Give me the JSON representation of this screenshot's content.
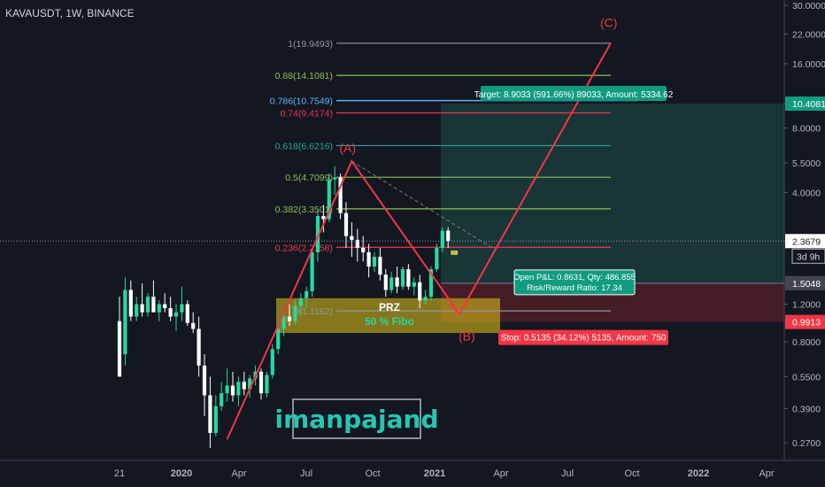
{
  "header": {
    "title": "KAVAUSDT, 1W, BINANCE"
  },
  "watermark": "imanpajand",
  "colors": {
    "bg": "#131722",
    "up": "#26d9a0",
    "down": "#ffffff",
    "fib": "#8bc34a",
    "pattern": "#f23645",
    "target_bg": "#1b3b3c",
    "stop_bg": "#4a1e26",
    "prz_fill": "#e6c619",
    "target_label": "#119c80",
    "stop_label": "#f23645"
  },
  "chart_data": {
    "type": "candlestick",
    "symbol": "KAVAUSDT",
    "interval": "1W",
    "exchange": "BINANCE",
    "y_scale": "log",
    "ylim": [
      0.24,
      32
    ],
    "x_axis": {
      "tick_labels": [
        "21",
        "2020",
        "Apr",
        "Jul",
        "Oct",
        "2021",
        "Apr",
        "Jul",
        "Oct",
        "2022",
        "Apr"
      ]
    },
    "y_axis": {
      "tick_labels": [
        "30.0000",
        "22.0000",
        "16.0000",
        "10.4081",
        "8.0000",
        "5.5000",
        "4.0000",
        "2.3679",
        "1.5048",
        "1.2000",
        "0.9913",
        "0.8000",
        "0.5500",
        "0.3900",
        "0.2700"
      ],
      "tick_values": [
        30,
        22,
        16,
        10.4081,
        8,
        5.5,
        4,
        2.3679,
        1.5048,
        1.2,
        0.9913,
        0.8,
        0.55,
        0.39,
        0.27
      ],
      "highlighted": [
        {
          "label": "10.4081",
          "color": "#119c80"
        },
        {
          "label": "2.3679",
          "color": "#ffffff"
        },
        {
          "label": "1.5048",
          "color": "#434651"
        },
        {
          "label": "0.9913",
          "color": "#f23645"
        }
      ],
      "countdown": "3d 9h"
    },
    "candles": [
      [
        1.0,
        1.3,
        0.55,
        0.55
      ],
      [
        0.7,
        1.6,
        0.62,
        1.4
      ],
      [
        1.4,
        1.55,
        1.0,
        1.05
      ],
      [
        1.05,
        1.3,
        1.0,
        1.2
      ],
      [
        1.2,
        1.5,
        1.05,
        1.1
      ],
      [
        1.1,
        1.35,
        1.05,
        1.3
      ],
      [
        1.3,
        1.55,
        1.1,
        1.1
      ],
      [
        1.1,
        1.25,
        1.0,
        1.2
      ],
      [
        1.2,
        1.35,
        1.1,
        1.15
      ],
      [
        1.15,
        1.3,
        1.0,
        1.05
      ],
      [
        1.05,
        1.2,
        0.9,
        1.1
      ],
      [
        1.1,
        1.45,
        1.0,
        1.2
      ],
      [
        1.2,
        1.25,
        0.95,
        0.98
      ],
      [
        0.98,
        1.1,
        0.88,
        0.92
      ],
      [
        0.92,
        1.05,
        0.55,
        0.62
      ],
      [
        0.62,
        0.7,
        0.36,
        0.45
      ],
      [
        0.45,
        0.55,
        0.255,
        0.3
      ],
      [
        0.3,
        0.45,
        0.29,
        0.4
      ],
      [
        0.4,
        0.52,
        0.38,
        0.46
      ],
      [
        0.46,
        0.6,
        0.42,
        0.5
      ],
      [
        0.5,
        0.58,
        0.42,
        0.45
      ],
      [
        0.45,
        0.55,
        0.4,
        0.52
      ],
      [
        0.52,
        0.58,
        0.45,
        0.48
      ],
      [
        0.48,
        0.56,
        0.44,
        0.54
      ],
      [
        0.54,
        0.62,
        0.5,
        0.58
      ],
      [
        0.58,
        0.6,
        0.43,
        0.46
      ],
      [
        0.46,
        0.58,
        0.44,
        0.56
      ],
      [
        0.56,
        0.78,
        0.54,
        0.74
      ],
      [
        0.74,
        0.98,
        0.7,
        0.92
      ],
      [
        0.92,
        1.1,
        0.85,
        1.05
      ],
      [
        1.05,
        1.2,
        0.95,
        1.0
      ],
      [
        1.0,
        1.25,
        0.96,
        1.18
      ],
      [
        1.18,
        1.35,
        1.08,
        1.28
      ],
      [
        1.28,
        1.45,
        1.15,
        1.38
      ],
      [
        1.38,
        2.2,
        1.3,
        2.1
      ],
      [
        2.1,
        3.3,
        1.9,
        3.1
      ],
      [
        3.1,
        3.5,
        2.6,
        3.0
      ],
      [
        3.0,
        4.9,
        2.9,
        4.6
      ],
      [
        4.6,
        5.3,
        3.9,
        4.7
      ],
      [
        4.7,
        4.9,
        3.0,
        3.2
      ],
      [
        3.2,
        3.6,
        2.2,
        2.5
      ],
      [
        2.5,
        2.9,
        2.0,
        2.4
      ],
      [
        2.4,
        2.7,
        1.9,
        2.2
      ],
      [
        2.2,
        2.5,
        1.9,
        2.1
      ],
      [
        2.1,
        2.3,
        1.6,
        1.8
      ],
      [
        1.8,
        2.1,
        1.7,
        2.0
      ],
      [
        2.0,
        2.2,
        1.55,
        1.65
      ],
      [
        1.65,
        1.75,
        1.3,
        1.4
      ],
      [
        1.4,
        1.7,
        1.35,
        1.6
      ],
      [
        1.6,
        1.8,
        1.35,
        1.45
      ],
      [
        1.45,
        1.8,
        1.4,
        1.75
      ],
      [
        1.75,
        1.85,
        1.4,
        1.45
      ],
      [
        1.45,
        1.6,
        1.32,
        1.52
      ],
      [
        1.52,
        1.65,
        1.15,
        1.25
      ],
      [
        1.25,
        1.4,
        1.2,
        1.3
      ],
      [
        1.3,
        1.8,
        1.25,
        1.75
      ],
      [
        1.75,
        2.3,
        1.7,
        2.2
      ],
      [
        2.2,
        2.75,
        2.1,
        2.65
      ],
      [
        2.65,
        2.75,
        2.2,
        2.37
      ]
    ],
    "fib_levels": [
      {
        "label": "1(19.9493)",
        "value": 19.9493,
        "color": "#9598a1"
      },
      {
        "label": "0.88(14.1081)",
        "value": 14.1081,
        "color": "#8bc34a"
      },
      {
        "label": "0.786(10.7549)",
        "value": 10.7549,
        "color": "#64b5f6"
      },
      {
        "label": "0.74(9.4174)",
        "value": 9.4174,
        "color": "#f23645"
      },
      {
        "label": "0.618(6.6216)",
        "value": 6.6216,
        "color": "#26a69a"
      },
      {
        "label": "0.5(4.7099)",
        "value": 4.7099,
        "color": "#8bc34a"
      },
      {
        "label": "0.382(3.3501)",
        "value": 3.3501,
        "color": "#8bc34a"
      },
      {
        "label": "0.236(2.2158)",
        "value": 2.2158,
        "color": "#f23645"
      },
      {
        "label": "0(1.1162)",
        "value": 1.1162,
        "color": "#9598a1"
      }
    ],
    "pattern_labels": [
      "(A)",
      "(B)",
      "(C)"
    ],
    "zone": {
      "label_1": "PRZ",
      "label_2": "50 % Fibo",
      "high": 1.28,
      "low": 0.88
    },
    "position": {
      "entry": 1.5048,
      "target": 10.4081,
      "stop": 0.9913,
      "target_label": "Target: 8.9033 (591.66%) 89033, Amount: 5334.62",
      "stop_label": "Stop: 0.5135 (34.12%) 5135, Amount: 750",
      "pnl_label_1": "Open P&L: 0.8631, Qty: 486.855",
      "pnl_label_2": "Risk/Reward Ratio: 17.34"
    },
    "last_price": 2.3679
  }
}
